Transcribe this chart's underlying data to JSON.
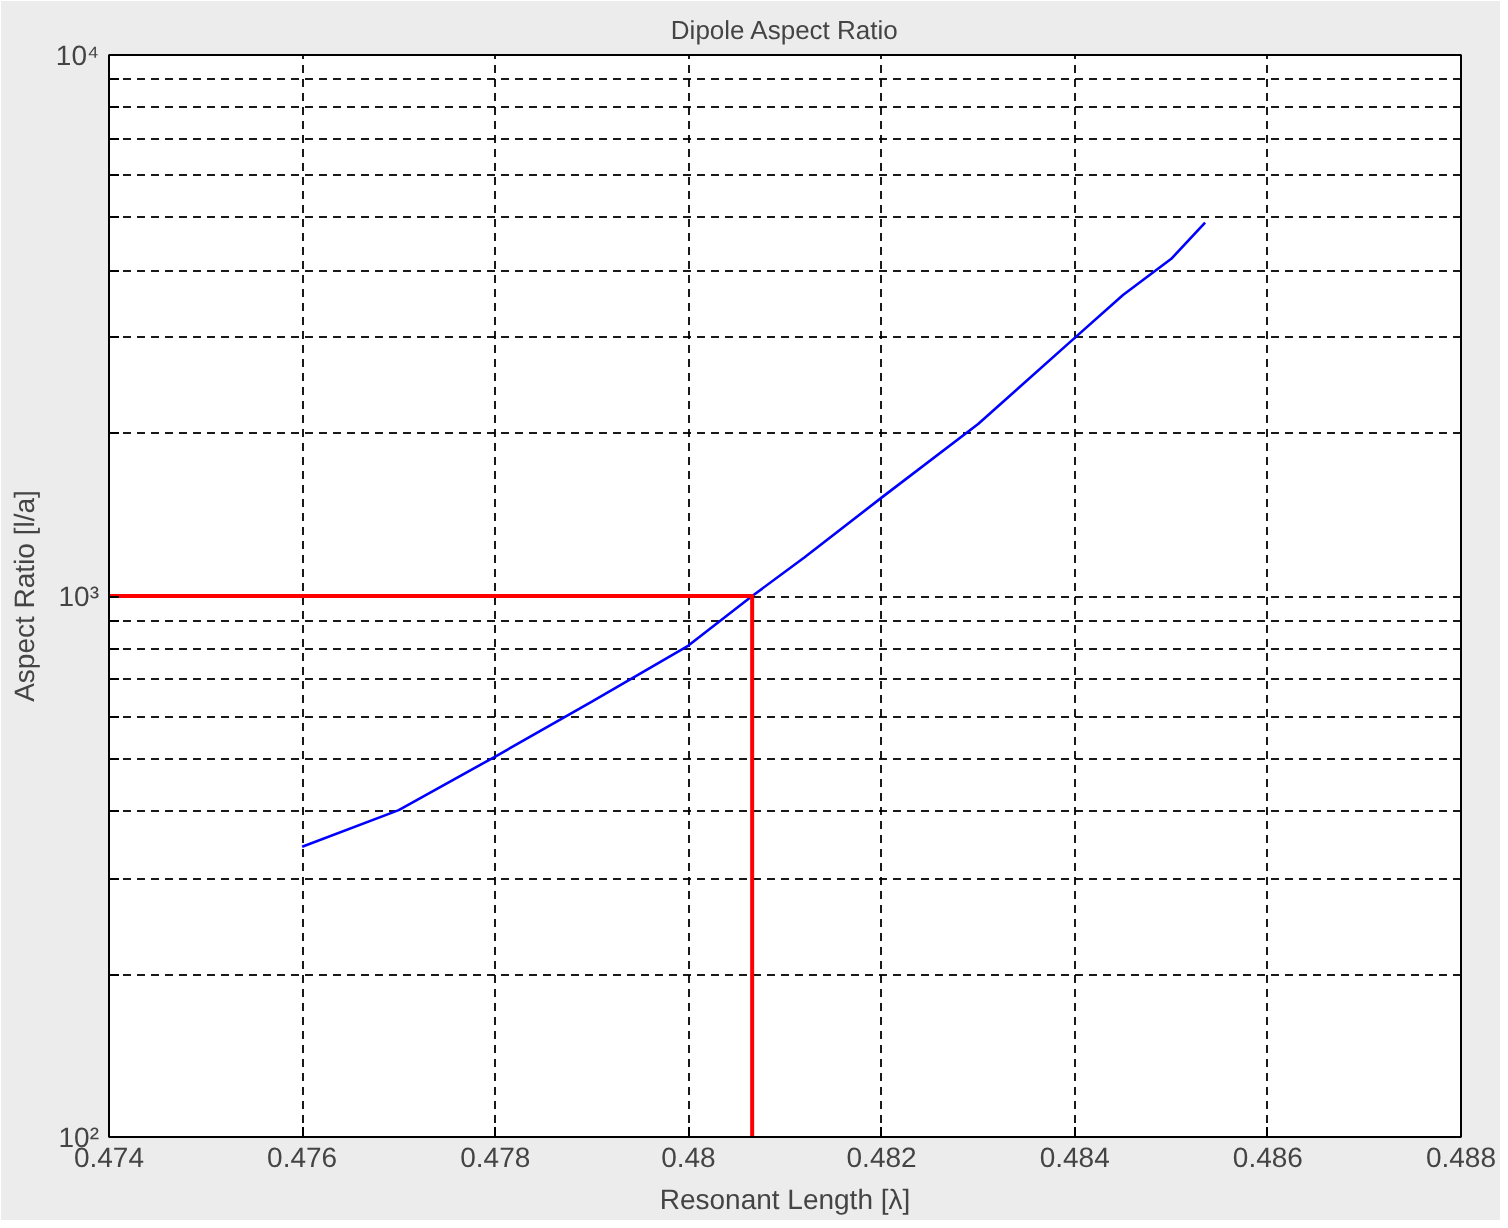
{
  "chart_data": {
    "type": "line",
    "title": "Dipole Aspect Ratio",
    "xlabel": "Resonant Length [λ]",
    "ylabel": "Aspect Ratio [l/a]",
    "series": [
      {
        "color": "#0000ff",
        "x": [
          0.476,
          0.477,
          0.478,
          0.479,
          0.48,
          0.48066,
          0.4812,
          0.482,
          0.483,
          0.484,
          0.4845,
          0.485,
          0.48535
        ],
        "values": [
          344,
          402,
          505,
          638,
          810,
          1000,
          1178,
          1520,
          2080,
          3000,
          3600,
          4200,
          4900
        ]
      },
      {
        "color": "#ff0000",
        "type": "line",
        "x": [
          0.474,
          0.48066,
          0.48066
        ],
        "values": [
          1000,
          1000,
          100
        ]
      }
    ],
    "log": "y",
    "xlim": [
      0.474,
      0.488
    ],
    "ylim": [
      100,
      10000
    ],
    "xticks": [
      0.474,
      0.476,
      0.478,
      0.48,
      0.482,
      0.484,
      0.486,
      0.488
    ],
    "yticks": [
      {
        "value": 100,
        "label": "10²"
      },
      {
        "value": 200,
        "label": null
      },
      {
        "value": 300,
        "label": null
      },
      {
        "value": 400,
        "label": null
      },
      {
        "value": 500,
        "label": null
      },
      {
        "value": 600,
        "label": null
      },
      {
        "value": 700,
        "label": null
      },
      {
        "value": 800,
        "label": null
      },
      {
        "value": 900,
        "label": null
      },
      {
        "value": 1000,
        "label": "10³"
      },
      {
        "value": 2000,
        "label": null
      },
      {
        "value": 3000,
        "label": null
      },
      {
        "value": 4000,
        "label": null
      },
      {
        "value": 5000,
        "label": null
      },
      {
        "value": 6000,
        "label": null
      },
      {
        "value": 7000,
        "label": null
      },
      {
        "value": 8000,
        "label": null
      },
      {
        "value": 9000,
        "label": null
      },
      {
        "value": 10000,
        "label": "10⁴"
      }
    ],
    "grid": true,
    "line_style": "solid"
  }
}
